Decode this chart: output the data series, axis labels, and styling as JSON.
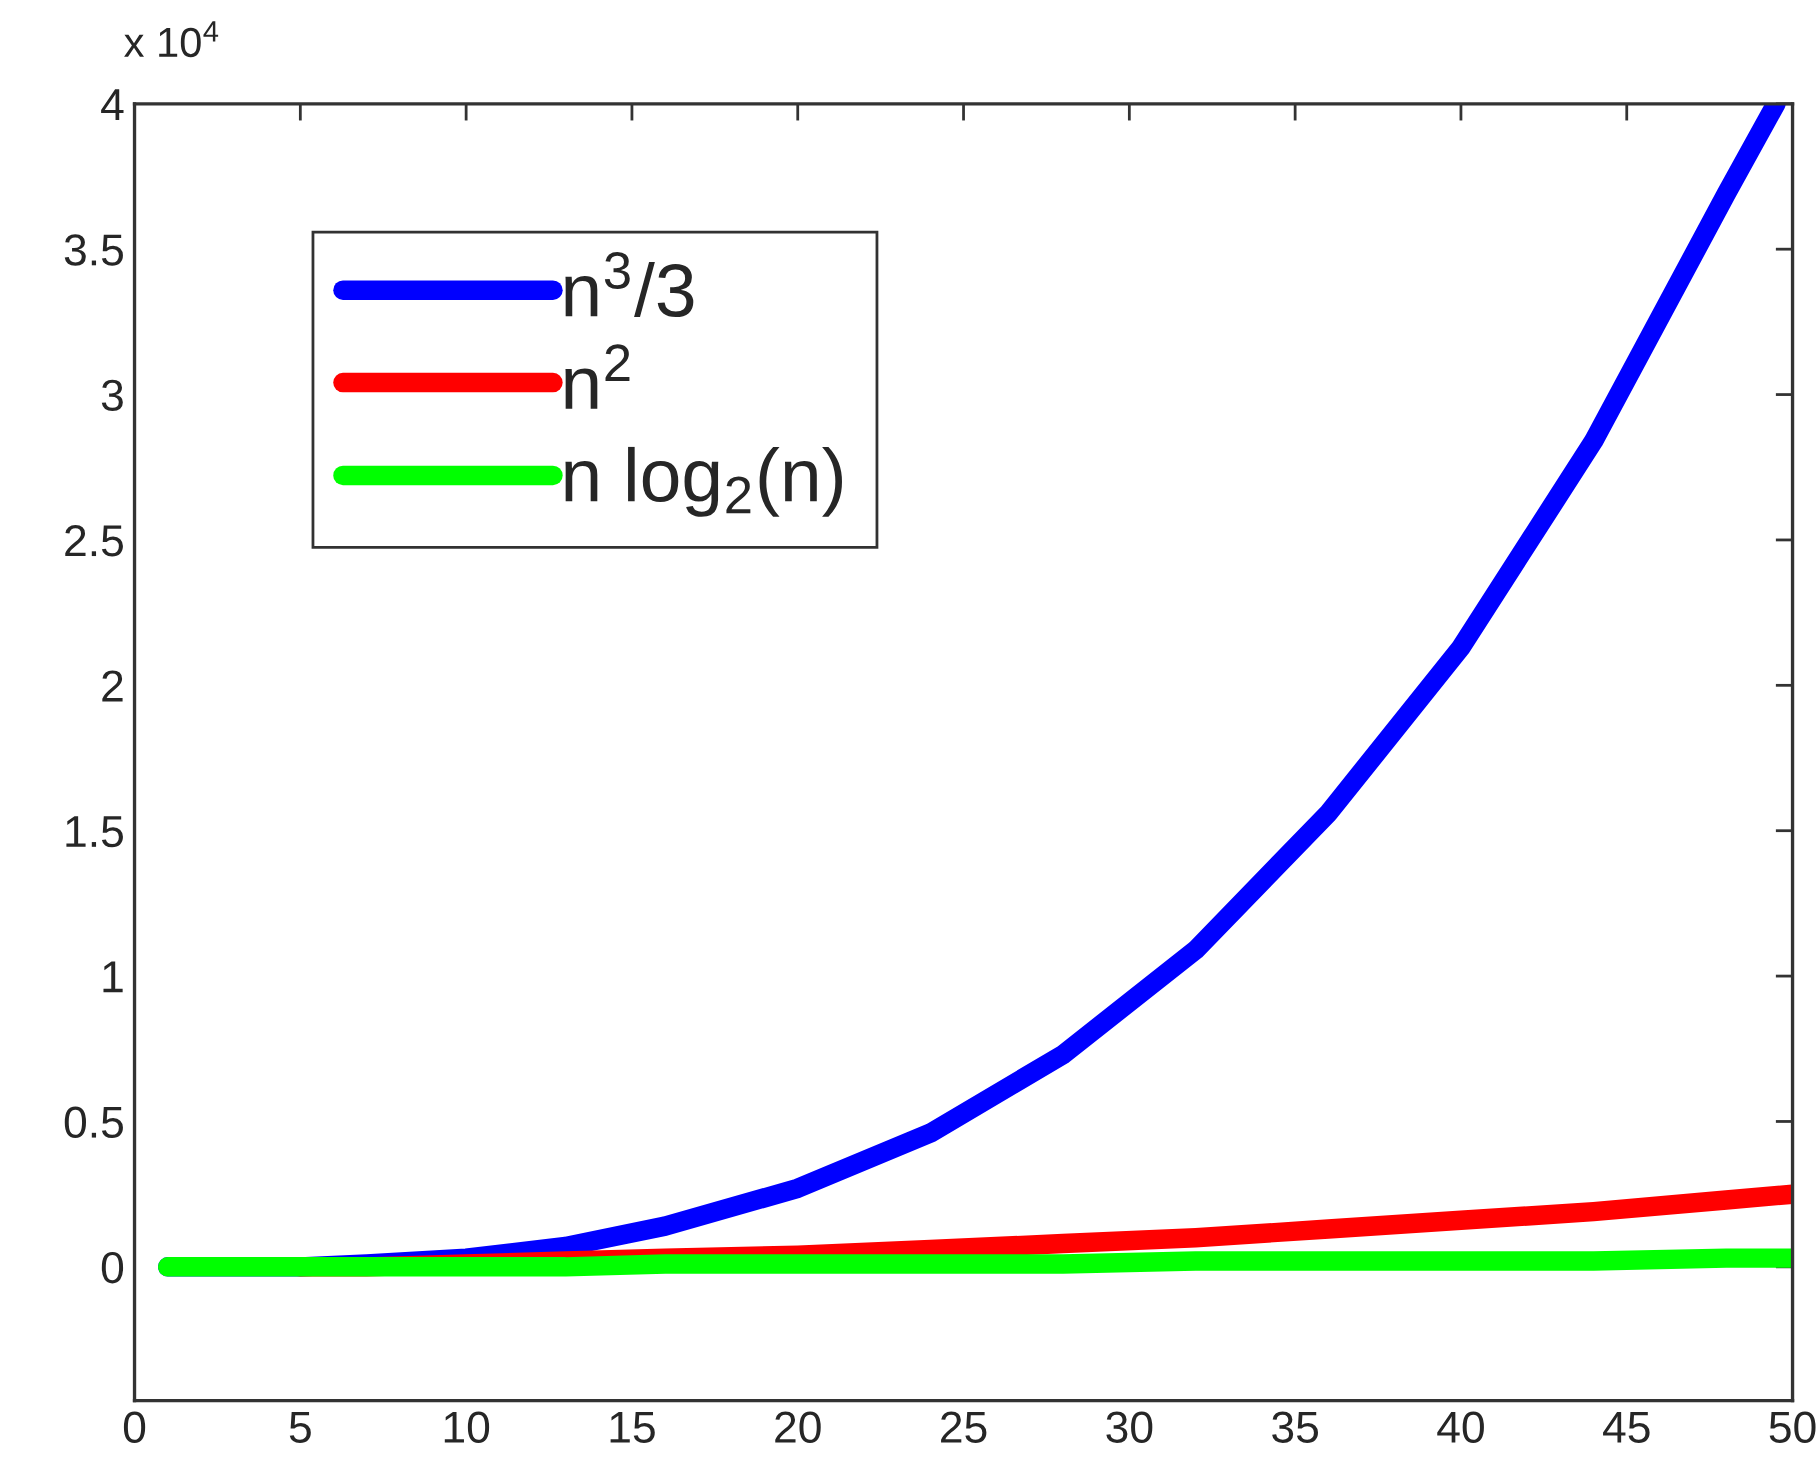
{
  "chart_data": {
    "type": "line",
    "series": [
      {
        "name": "n$^{3}$/3",
        "color": "#0000ff",
        "x": [
          1,
          3,
          5,
          7,
          10,
          13,
          16,
          20,
          24,
          28,
          32,
          36,
          40,
          44,
          48,
          49.5
        ],
        "values": [
          0,
          0,
          0,
          0.01,
          0.03,
          0.07,
          0.14,
          0.27,
          0.46,
          0.73,
          1.09,
          1.56,
          2.13,
          2.84,
          3.69,
          4.0
        ]
      },
      {
        "name": "n$^{2}$",
        "color": "#ff0000",
        "x": [
          5,
          7,
          10,
          13,
          16,
          20,
          24,
          28,
          32,
          36,
          40,
          44,
          48,
          50
        ],
        "values": [
          0,
          0,
          0.01,
          0.02,
          0.03,
          0.04,
          0.06,
          0.08,
          0.1,
          0.13,
          0.16,
          0.19,
          0.23,
          0.25
        ]
      },
      {
        "name": "n log$_{2}$(n)",
        "color": "#00ff00",
        "x": [
          1,
          3,
          5,
          7,
          10,
          13,
          16,
          20,
          24,
          28,
          32,
          36,
          40,
          44,
          48,
          50
        ],
        "values": [
          0,
          0,
          0,
          0,
          0,
          0,
          0.01,
          0.01,
          0.01,
          0.01,
          0.02,
          0.02,
          0.02,
          0.02,
          0.03,
          0.03
        ]
      }
    ],
    "xlim": [
      0,
      50
    ],
    "xticks": [
      0,
      5,
      10,
      15,
      20,
      25,
      30,
      35,
      40,
      45,
      50
    ],
    "ylim": [
      -0.46,
      4
    ],
    "yticks": [
      0,
      0.5,
      1,
      1.5,
      2,
      2.5,
      3,
      3.5,
      4
    ],
    "annotations": [
      "x 10$^{4}$"
    ],
    "grid": false,
    "legend": "top left",
    "line_style": "solid",
    "marker": "none"
  }
}
